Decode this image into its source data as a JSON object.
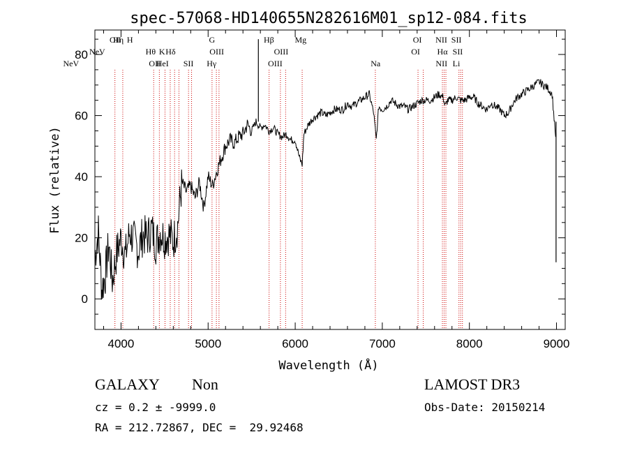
{
  "colors": {
    "line_marker": "#cc0000",
    "spectrum": "#000000",
    "background": "#ffffff",
    "axes": "#000000"
  },
  "chart_data": {
    "type": "line",
    "title": "spec-57068-HD140655N282616M01_sp12-084.fits",
    "xlabel": "Wavelength (Å)",
    "ylabel": "Flux (relative)",
    "xlim": [
      3700,
      9100
    ],
    "ylim": [
      -10,
      88
    ],
    "x_ticks": [
      4000,
      5000,
      6000,
      7000,
      8000,
      9000
    ],
    "y_ticks": [
      0,
      20,
      40,
      60,
      80
    ],
    "grid": false,
    "series": [
      {
        "x": [
          3700,
          3740,
          3780,
          3820,
          3860,
          3900,
          3950,
          4000,
          4050,
          4100,
          4150,
          4200,
          4250,
          4300,
          4350,
          4400,
          4450,
          4500,
          4550,
          4600,
          4650,
          4680,
          4700,
          4750,
          4800,
          4850,
          4900,
          4950,
          5000,
          5050,
          5100,
          5150,
          5200,
          5250,
          5300,
          5350,
          5400,
          5450,
          5500,
          5550,
          5600,
          5650,
          5700,
          5750,
          5800,
          5850,
          5900,
          5950,
          6000,
          6050,
          6080,
          6100,
          6150,
          6200,
          6250,
          6300,
          6350,
          6400,
          6450,
          6500,
          6550,
          6600,
          6650,
          6700,
          6750,
          6800,
          6850,
          6900,
          6930,
          6960,
          7000,
          7050,
          7100,
          7150,
          7200,
          7250,
          7300,
          7350,
          7400,
          7450,
          7500,
          7550,
          7600,
          7650,
          7700,
          7720,
          7750,
          7800,
          7850,
          7900,
          7950,
          8000,
          8050,
          8100,
          8150,
          8200,
          8250,
          8300,
          8350,
          8400,
          8450,
          8500,
          8550,
          8600,
          8650,
          8700,
          8750,
          8800,
          8850,
          8900,
          8950,
          8990
        ],
        "values": [
          14,
          22,
          3,
          8,
          18,
          6,
          15,
          20,
          14,
          22,
          19,
          16,
          21,
          20,
          23,
          18,
          22,
          20,
          21,
          19,
          24,
          33,
          38,
          35,
          37,
          33,
          38,
          30,
          40,
          37,
          42,
          46,
          50,
          52,
          51,
          53,
          54,
          57,
          55,
          58,
          56,
          57,
          55,
          56,
          54,
          53,
          54,
          52,
          52,
          46,
          44,
          54,
          57,
          59,
          60,
          61,
          60,
          61,
          62,
          62,
          62,
          64,
          63,
          64,
          65,
          66,
          67,
          61,
          52,
          63,
          62,
          63,
          65,
          64,
          63,
          63,
          62,
          63,
          64,
          65,
          65,
          65,
          66,
          67,
          66,
          63,
          65,
          65,
          66,
          65,
          65,
          66,
          66,
          64,
          63,
          62,
          64,
          63,
          62,
          60,
          61,
          64,
          66,
          67,
          68,
          69,
          70,
          71,
          70,
          69,
          67,
          53
        ]
      }
    ],
    "spikes": [
      {
        "x": 5577,
        "value": 85
      },
      {
        "x": 8995,
        "value": 12
      }
    ],
    "line_markers": [
      {
        "x": 3426,
        "label": "NeV",
        "row": 2
      },
      {
        "x": 3727,
        "label": "NeV",
        "row": 1
      },
      {
        "x": 3935,
        "label": "OII",
        "row": 0
      },
      {
        "x": 3970,
        "label": "Hη",
        "row": 0
      },
      {
        "x": 4102,
        "label": "H",
        "row": 0
      },
      {
        "x": 4340,
        "label": "Hθ",
        "row": 1
      },
      {
        "x": 4471,
        "label": "K",
        "row": 1
      },
      {
        "x": 4569,
        "label": "Hδ",
        "row": 1
      },
      {
        "x": 4387,
        "label": "OII",
        "row": 2
      },
      {
        "x": 4475,
        "label": "HeI",
        "row": 2
      },
      {
        "x": 4774,
        "label": "SII",
        "row": 2
      },
      {
        "x": 5045,
        "label": "G",
        "row": 0
      },
      {
        "x": 5099,
        "label": "OIII",
        "row": 1
      },
      {
        "x": 5040,
        "label": "Hγ",
        "row": 2
      },
      {
        "x": 5698,
        "label": "Hβ",
        "row": 0
      },
      {
        "x": 5839,
        "label": "OIII",
        "row": 1
      },
      {
        "x": 5770,
        "label": "OIII",
        "row": 2
      },
      {
        "x": 6062,
        "label": "Mg",
        "row": 0
      },
      {
        "x": 6923,
        "label": "Na",
        "row": 2
      },
      {
        "x": 7402,
        "label": "OI",
        "row": 0
      },
      {
        "x": 7382,
        "label": "OI",
        "row": 1
      },
      {
        "x": 7678,
        "label": "NII",
        "row": 0
      },
      {
        "x": 7690,
        "label": "Hα",
        "row": 1
      },
      {
        "x": 7680,
        "label": "NII",
        "row": 2
      },
      {
        "x": 7851,
        "label": "SII",
        "row": 0
      },
      {
        "x": 7866,
        "label": "SII",
        "row": 1
      },
      {
        "x": 7850,
        "label": "Li",
        "row": 2
      }
    ],
    "marker_lines_x": [
      3930,
      4020,
      4375,
      4440,
      4505,
      4565,
      4615,
      4665,
      4775,
      4810,
      5045,
      5095,
      5125,
      5700,
      5830,
      5890,
      6080,
      6920,
      7410,
      7470,
      7690,
      7710,
      7730,
      7880,
      7900,
      7920
    ]
  },
  "info": {
    "object_class": "GALAXY",
    "subclass": "Non",
    "survey": "LAMOST DR3",
    "cz": "cz = 0.2 ± -9999.0",
    "obs_date": "Obs-Date: 20150214",
    "coords": "RA = 212.72867, DEC =  29.92468"
  }
}
